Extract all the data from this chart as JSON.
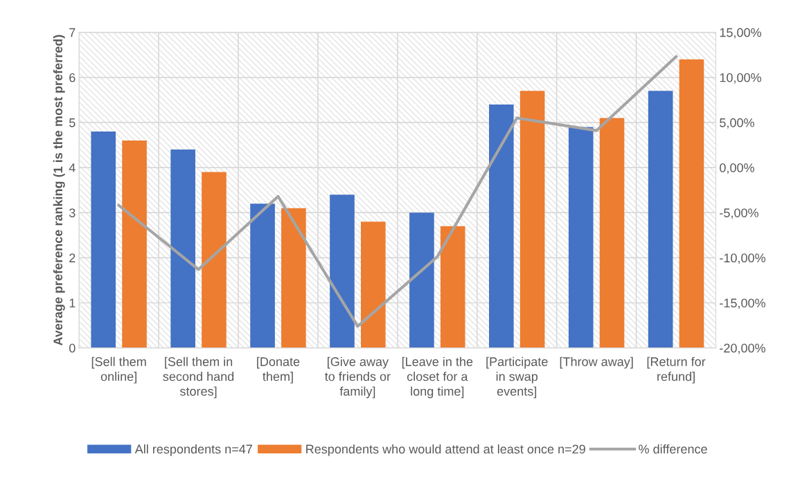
{
  "chart_data": {
    "type": "bar",
    "ylabel": "Average preference ranking (1 is the most preferred)",
    "categories": [
      "[Sell them online]",
      "[Sell them in second hand stores]",
      "[Donate them]",
      "[Give away to friends or family]",
      "[Leave in the closet for a long time]",
      "[Participate in swap events]",
      "[Throw away]",
      "[Return for refund]"
    ],
    "series": [
      {
        "name": "All respondents n=47",
        "color": "#4472c4",
        "values": [
          4.8,
          4.4,
          3.2,
          3.4,
          3.0,
          5.4,
          4.9,
          5.7
        ]
      },
      {
        "name": "Respondents who would attend at least once n=29",
        "color": "#ed7d31",
        "values": [
          4.6,
          3.9,
          3.1,
          2.8,
          2.7,
          5.7,
          5.1,
          6.4
        ]
      },
      {
        "name": "% difference",
        "type": "line",
        "axis": "y2",
        "color": "#a5a5a5",
        "values": [
          -4.2,
          -11.3,
          -3.2,
          -17.6,
          -9.9,
          5.5,
          4.1,
          12.3
        ]
      }
    ],
    "ylim": [
      0,
      7
    ],
    "yticks": [
      0,
      1,
      2,
      3,
      4,
      5,
      6,
      7
    ],
    "y2lim": [
      -20,
      15
    ],
    "y2ticks": [
      {
        "value": -20,
        "label": "-20,00%"
      },
      {
        "value": -15,
        "label": "-15,00%"
      },
      {
        "value": -10,
        "label": "-10,00%"
      },
      {
        "value": -5,
        "label": "-5,00%"
      },
      {
        "value": 0,
        "label": "0,00%"
      },
      {
        "value": 5,
        "label": "5,00%"
      },
      {
        "value": 10,
        "label": "10,00%"
      },
      {
        "value": 15,
        "label": "15,00%"
      }
    ],
    "grid": true,
    "legend": "bottom",
    "marker": "none",
    "line_style": "solid"
  }
}
